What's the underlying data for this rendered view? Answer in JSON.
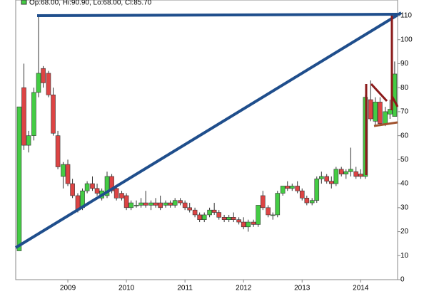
{
  "chart_data": {
    "type": "candlestick",
    "header": "Op:68.00, Hi:90.90, Lo:68.00, Cl:85.70",
    "up_color": "#44cc44",
    "down_color": "#dd4444",
    "xlim": [
      2008.11,
      2014.63
    ],
    "xticks": [
      2009,
      2010,
      2011,
      2012,
      2013,
      2014
    ],
    "ylim": [
      0,
      110
    ],
    "yticks": [
      0,
      10,
      20,
      30,
      40,
      50,
      60,
      70,
      80,
      90,
      100,
      110
    ],
    "x": [
      2008.17,
      2008.25,
      2008.33,
      2008.42,
      2008.5,
      2008.58,
      2008.67,
      2008.75,
      2008.83,
      2008.92,
      2009.0,
      2009.08,
      2009.17,
      2009.25,
      2009.33,
      2009.42,
      2009.5,
      2009.58,
      2009.67,
      2009.75,
      2009.83,
      2009.92,
      2010.0,
      2010.08,
      2010.17,
      2010.25,
      2010.33,
      2010.42,
      2010.5,
      2010.58,
      2010.67,
      2010.75,
      2010.83,
      2010.92,
      2011.0,
      2011.08,
      2011.17,
      2011.25,
      2011.33,
      2011.42,
      2011.5,
      2011.58,
      2011.67,
      2011.75,
      2011.83,
      2011.92,
      2012.0,
      2012.08,
      2012.17,
      2012.25,
      2012.33,
      2012.42,
      2012.5,
      2012.58,
      2012.67,
      2012.75,
      2012.83,
      2012.92,
      2013.0,
      2013.08,
      2013.17,
      2013.25,
      2013.33,
      2013.42,
      2013.5,
      2013.58,
      2013.67,
      2013.75,
      2013.83,
      2013.92,
      2014.0,
      2014.08,
      2014.17,
      2014.25,
      2014.33,
      2014.42,
      2014.5,
      2014.58
    ],
    "open": [
      12,
      80,
      56,
      60,
      78,
      88,
      86,
      77,
      60,
      43,
      48,
      40,
      35,
      30,
      37,
      40,
      38,
      34,
      35,
      43,
      38,
      36,
      35,
      30,
      31,
      31,
      32,
      31,
      32,
      32,
      31,
      32,
      31,
      33,
      32,
      30,
      29,
      27,
      25,
      27,
      29,
      28,
      26,
      25,
      26,
      25,
      24,
      22,
      24,
      23,
      35,
      30,
      27,
      27,
      36,
      39,
      38,
      39,
      37,
      34,
      32,
      33,
      42,
      43,
      41,
      40,
      46,
      44,
      45,
      45,
      44,
      43,
      75,
      66,
      74,
      65,
      69,
      68
    ],
    "high": [
      72,
      90,
      62,
      80,
      110,
      89,
      87,
      80,
      62,
      49,
      50,
      42,
      36,
      38,
      41,
      43,
      40,
      38,
      45,
      44,
      39,
      37,
      36,
      33,
      33,
      34,
      37,
      33,
      34,
      35,
      33,
      33,
      34,
      34,
      33,
      32,
      30,
      28,
      28,
      30,
      32,
      29,
      27,
      27,
      28,
      26,
      26,
      25,
      25,
      31,
      37,
      31,
      28,
      37,
      39,
      41,
      40,
      41,
      38,
      35,
      34,
      43,
      45,
      44,
      43,
      47,
      47,
      46,
      55,
      47,
      46,
      77,
      83,
      76,
      76,
      72,
      75,
      90.9
    ],
    "low": [
      12,
      54,
      53,
      58,
      76,
      80,
      76,
      60,
      46,
      38,
      39,
      34,
      28,
      29,
      36,
      37,
      35,
      33,
      34,
      36,
      33,
      33,
      29,
      29,
      30,
      30,
      30,
      29,
      30,
      29,
      30,
      30,
      30,
      31,
      29,
      28,
      26,
      24,
      24,
      26,
      27,
      25,
      24,
      24,
      24,
      23,
      21,
      20,
      22,
      22,
      29,
      26,
      25,
      26,
      35,
      37,
      37,
      36,
      33,
      31,
      31,
      32,
      40,
      40,
      38,
      39,
      43,
      42,
      43,
      42,
      42,
      42,
      66,
      64,
      64,
      64,
      67,
      68
    ],
    "close": [
      72,
      56,
      60,
      78,
      86,
      82,
      77,
      61,
      47,
      48,
      40,
      35,
      29,
      37,
      40,
      38,
      36,
      37,
      43,
      37,
      34,
      34,
      30,
      32,
      31,
      32,
      31,
      32,
      31,
      30,
      32,
      31,
      33,
      32,
      30,
      29,
      27,
      25,
      27,
      29,
      28,
      26,
      25,
      26,
      25,
      24,
      22,
      24,
      23,
      31,
      30,
      27,
      27,
      36,
      39,
      38,
      39,
      37,
      34,
      32,
      33,
      42,
      43,
      41,
      40,
      46,
      44,
      45,
      46,
      43,
      43,
      76,
      67,
      74,
      65,
      70,
      71,
      85.7
    ]
  }
}
